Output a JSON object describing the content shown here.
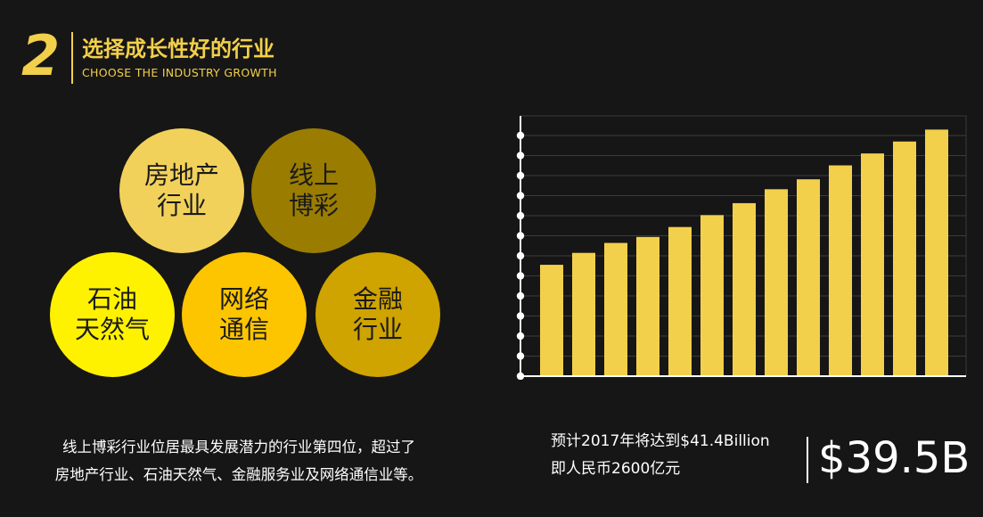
{
  "header": {
    "number": "2",
    "title_cn": "选择成长性好的行业",
    "title_en": "CHOOSE THE INDUSTRY GROWTH"
  },
  "circles": [
    {
      "label": "房地产\n行业",
      "color": "#f2d15b"
    },
    {
      "label": "线上\n博彩",
      "color": "#9a7d00"
    },
    {
      "label": "石油\n天然气",
      "color": "#fff200"
    },
    {
      "label": "网络\n通信",
      "color": "#fcc500"
    },
    {
      "label": "金融\n行业",
      "color": "#cfa300"
    }
  ],
  "chart_data": {
    "type": "bar",
    "values": [
      28.0,
      31.0,
      33.5,
      35.0,
      37.5,
      40.5,
      43.5,
      47.0,
      49.5,
      53.0,
      56.0,
      59.0,
      62.0
    ],
    "ylim": [
      0,
      65
    ],
    "y_tick_count": 13,
    "grid": true,
    "bar_color": "#f2d04b",
    "axis_color": "#ffffff"
  },
  "description": {
    "line1": "线上博彩行业位居最具发展潜力的行业第四位，超过了",
    "line2": "房地产行业、石油天然气、金融服务业及网络通信业等。"
  },
  "forecast": {
    "line1": "预计2017年将达到$41.4Billion",
    "line2": "即人民币2600亿元"
  },
  "highlight_value": "$39.5B"
}
